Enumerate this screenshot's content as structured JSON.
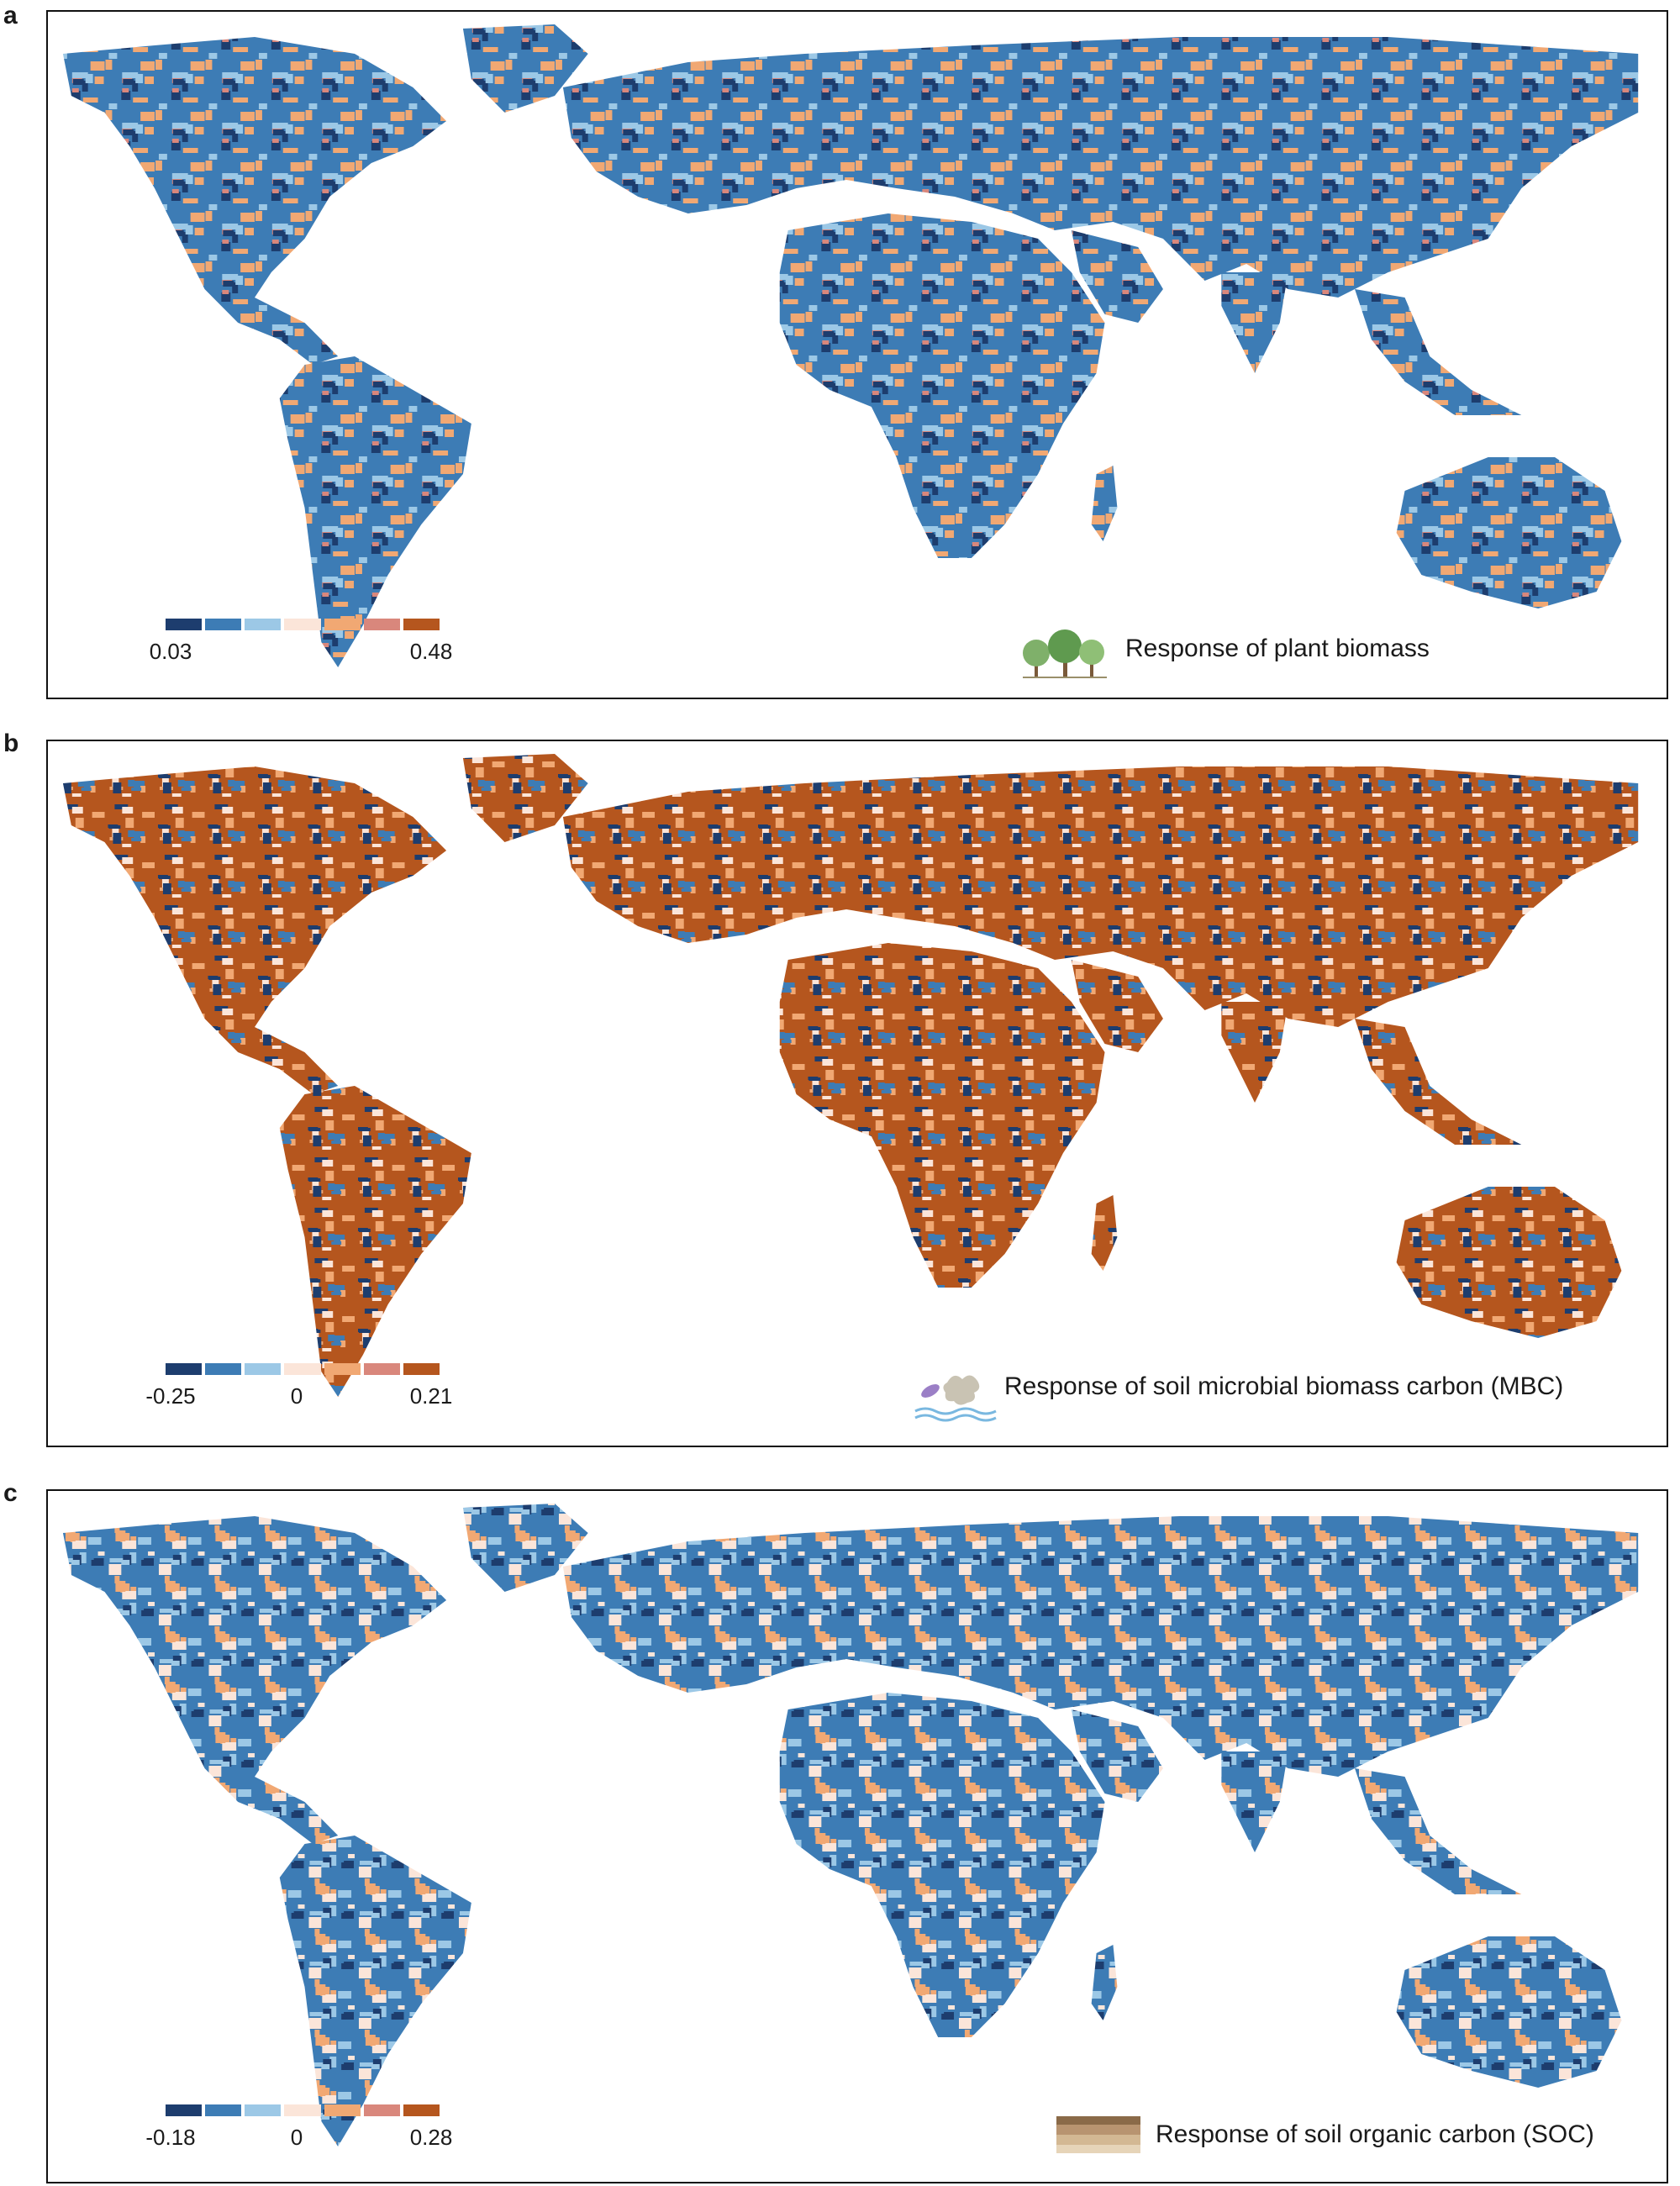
{
  "palette": [
    "#1d3d6e",
    "#3d7cb5",
    "#9cc8e6",
    "#fbe5d9",
    "#f1a873",
    "#d9877c",
    "#b5561e"
  ],
  "land_fill": "#6aa6d6",
  "panels": [
    {
      "letter": "a",
      "caption": "Response of plant biomass",
      "icon": "tree-icon",
      "legend": {
        "min": "0.03",
        "mid": "",
        "max": "0.48"
      },
      "dominant": [
        1,
        2,
        4,
        0,
        5
      ]
    },
    {
      "letter": "b",
      "caption": "Response of soil microbial biomass carbon (MBC)",
      "icon": "microbe-icon",
      "legend": {
        "min": "-0.25",
        "mid": "0",
        "max": "0.21"
      },
      "dominant": [
        6,
        4,
        0,
        1,
        3
      ]
    },
    {
      "letter": "c",
      "caption": "Response of soil organic carbon (SOC)",
      "icon": "soil-layers-icon",
      "legend": {
        "min": "-0.18",
        "mid": "0",
        "max": "0.28"
      },
      "dominant": [
        1,
        4,
        2,
        0,
        3
      ]
    }
  ]
}
